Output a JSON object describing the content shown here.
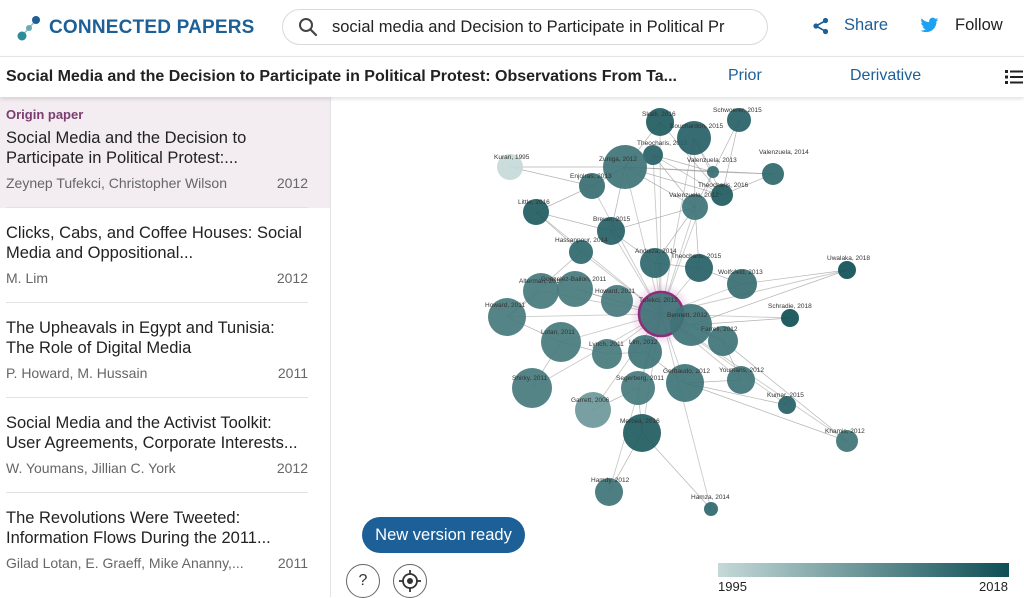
{
  "brand": {
    "name": "CONNECTED PAPERS",
    "color": "#1d5f97"
  },
  "search": {
    "value": "social media and Decision to Participate in Political Pr"
  },
  "header": {
    "share_label": "Share",
    "follow_label": "Follow"
  },
  "titlebar": {
    "title": "Social Media and the Decision to Participate in Political Protest: Observations From Ta...",
    "prior_label": "Prior",
    "derivative_label": "Derivative"
  },
  "sidebar": {
    "origin_label": "Origin paper",
    "items": [
      {
        "title": "Social Media and the Decision to Participate in Political Protest:...",
        "authors": "Zeynep Tufekci, Christopher Wilson",
        "year": "2012"
      },
      {
        "title": "Clicks, Cabs, and Coffee Houses: Social Media and Oppositional...",
        "authors": "M. Lim",
        "year": "2012"
      },
      {
        "title": "The Upheavals in Egypt and Tunisia: The Role of Digital Media",
        "authors": "P. Howard, M. Hussain",
        "year": "2011"
      },
      {
        "title": "Social Media and the Activist Toolkit: User Agreements, Corporate Interests...",
        "authors": "W. Youmans, Jillian C. York",
        "year": "2012"
      },
      {
        "title": "The Revolutions Were Tweeted: Information Flows During the 2011...",
        "authors": "Gilad Lotan, E. Graeff, Mike Ananny,...",
        "year": "2011"
      }
    ]
  },
  "graph": {
    "nodes": [
      {
        "label": "Tufekci, 2012",
        "year": 2012,
        "origin": true
      },
      {
        "label": "Skalli, 2016",
        "year": 2016
      },
      {
        "label": "Schwoerer, 2015",
        "year": 2015
      },
      {
        "label": "Theocharis, 2015",
        "year": 2015
      },
      {
        "label": "Bouchardon, 2015",
        "year": 2015
      },
      {
        "label": "Zuniga, 2012",
        "year": 2012
      },
      {
        "label": "Valenzuela, 2013",
        "year": 2013
      },
      {
        "label": "Valenzuela, 2014",
        "year": 2014
      },
      {
        "label": "Kuran, 1995",
        "year": 1995
      },
      {
        "label": "Enjolras, 2013",
        "year": 2013
      },
      {
        "label": "Theocharis, 2016",
        "year": 2016
      },
      {
        "label": "Valenzuela, 2012",
        "year": 2012
      },
      {
        "label": "Little, 2016",
        "year": 2016
      },
      {
        "label": "Breuer, 2015",
        "year": 2015
      },
      {
        "label": "Hassanpour, 2014",
        "year": 2014
      },
      {
        "label": "Anduiza, 2014",
        "year": 2014
      },
      {
        "label": "Theocharis, 2015",
        "year": 2015
      },
      {
        "label": "Uwalaka, 2018",
        "year": 2018
      },
      {
        "label": "Alterman, 2011",
        "year": 2011
      },
      {
        "label": "Gonzalez-Bailon, 2011",
        "year": 2011
      },
      {
        "label": "Wolfsfeld, 2013",
        "year": 2013
      },
      {
        "label": "Howard, 2011",
        "year": 2011
      },
      {
        "label": "Howard, 2011",
        "year": 2011
      },
      {
        "label": "Schradie, 2018",
        "year": 2018
      },
      {
        "label": "Bennett, 2012",
        "year": 2012
      },
      {
        "label": "Lotan, 2011",
        "year": 2011
      },
      {
        "label": "Farrell, 2012",
        "year": 2012
      },
      {
        "label": "Lynch, 2011",
        "year": 2011
      },
      {
        "label": "Lim, 2012",
        "year": 2012
      },
      {
        "label": "Gerbaudo, 2012",
        "year": 2012
      },
      {
        "label": "Youmans, 2012",
        "year": 2012
      },
      {
        "label": "Shirky, 2011",
        "year": 2011
      },
      {
        "label": "Segerberg, 2011",
        "year": 2011
      },
      {
        "label": "Kumar, 2015",
        "year": 2015
      },
      {
        "label": "Garrett, 2006",
        "year": 2006
      },
      {
        "label": "Mercea, 2016",
        "year": 2016
      },
      {
        "label": "Khamis, 2012",
        "year": 2012
      },
      {
        "label": "Hamdy, 2012",
        "year": 2012
      },
      {
        "label": "Hamza, 2014",
        "year": 2014
      }
    ]
  },
  "new_version_label": "New version ready",
  "help_label": "?",
  "legend": {
    "min": "1995",
    "max": "2018"
  }
}
